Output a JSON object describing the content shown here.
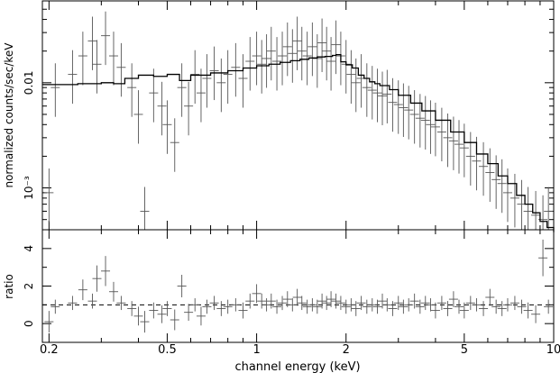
{
  "chart_data": [
    {
      "type": "scatter",
      "panel": "spectrum",
      "ylabel": "normalized counts/sec/keV",
      "xscale": "log",
      "yscale": "log",
      "xlim": [
        0.19,
        10
      ],
      "ylim": [
        0.0004,
        0.06
      ],
      "yticks": [
        {
          "value": 0.01,
          "label": "0.01"
        },
        {
          "value": 0.001,
          "label": "10⁻³"
        }
      ],
      "data": [
        [
          0.2,
          0.0009
        ],
        [
          0.21,
          0.009
        ],
        [
          0.24,
          0.012
        ],
        [
          0.26,
          0.018
        ],
        [
          0.28,
          0.025
        ],
        [
          0.29,
          0.015
        ],
        [
          0.31,
          0.028
        ],
        [
          0.33,
          0.018
        ],
        [
          0.35,
          0.014
        ],
        [
          0.38,
          0.009
        ],
        [
          0.4,
          0.005
        ],
        [
          0.42,
          0.0006
        ],
        [
          0.45,
          0.008
        ],
        [
          0.48,
          0.006
        ],
        [
          0.5,
          0.004
        ],
        [
          0.53,
          0.0027
        ],
        [
          0.56,
          0.009
        ],
        [
          0.59,
          0.006
        ],
        [
          0.62,
          0.012
        ],
        [
          0.65,
          0.008
        ],
        [
          0.68,
          0.011
        ],
        [
          0.72,
          0.013
        ],
        [
          0.76,
          0.01
        ],
        [
          0.8,
          0.012
        ],
        [
          0.85,
          0.014
        ],
        [
          0.9,
          0.011
        ],
        [
          0.95,
          0.016
        ],
        [
          1.0,
          0.018
        ],
        [
          1.04,
          0.015
        ],
        [
          1.08,
          0.017
        ],
        [
          1.12,
          0.02
        ],
        [
          1.17,
          0.016
        ],
        [
          1.22,
          0.018
        ],
        [
          1.27,
          0.022
        ],
        [
          1.32,
          0.019
        ],
        [
          1.37,
          0.025
        ],
        [
          1.42,
          0.02
        ],
        [
          1.48,
          0.018
        ],
        [
          1.54,
          0.022
        ],
        [
          1.6,
          0.017
        ],
        [
          1.66,
          0.024
        ],
        [
          1.72,
          0.02
        ],
        [
          1.78,
          0.016
        ],
        [
          1.85,
          0.023
        ],
        [
          1.92,
          0.018
        ],
        [
          2.0,
          0.015
        ],
        [
          2.08,
          0.012
        ],
        [
          2.16,
          0.01
        ],
        [
          2.25,
          0.011
        ],
        [
          2.35,
          0.009
        ],
        [
          2.45,
          0.0085
        ],
        [
          2.55,
          0.008
        ],
        [
          2.65,
          0.0075
        ],
        [
          2.75,
          0.0078
        ],
        [
          2.87,
          0.0065
        ],
        [
          3.0,
          0.0062
        ],
        [
          3.12,
          0.0058
        ],
        [
          3.25,
          0.0055
        ],
        [
          3.4,
          0.005
        ],
        [
          3.55,
          0.0046
        ],
        [
          3.7,
          0.0044
        ],
        [
          3.85,
          0.004
        ],
        [
          4.0,
          0.0038
        ],
        [
          4.2,
          0.0034
        ],
        [
          4.4,
          0.003
        ],
        [
          4.6,
          0.0028
        ],
        [
          4.8,
          0.0026
        ],
        [
          5.0,
          0.0024
        ],
        [
          5.25,
          0.002
        ],
        [
          5.5,
          0.0018
        ],
        [
          5.8,
          0.0016
        ],
        [
          6.1,
          0.0014
        ],
        [
          6.4,
          0.0012
        ],
        [
          6.7,
          0.0011
        ],
        [
          7.0,
          0.0009
        ],
        [
          7.4,
          0.0008
        ],
        [
          7.8,
          0.0007
        ],
        [
          8.2,
          0.0006
        ],
        [
          8.7,
          0.00055
        ],
        [
          9.2,
          0.0005
        ],
        [
          9.6,
          0.0006
        ]
      ],
      "model": [
        [
          0.19,
          0.0096
        ],
        [
          0.25,
          0.0098
        ],
        [
          0.3,
          0.01
        ],
        [
          0.33,
          0.0098
        ],
        [
          0.36,
          0.011
        ],
        [
          0.4,
          0.0118
        ],
        [
          0.45,
          0.0115
        ],
        [
          0.5,
          0.012
        ],
        [
          0.55,
          0.0105
        ],
        [
          0.6,
          0.0118
        ],
        [
          0.7,
          0.0124
        ],
        [
          0.8,
          0.013
        ],
        [
          0.9,
          0.0138
        ],
        [
          1.0,
          0.0145
        ],
        [
          1.1,
          0.015
        ],
        [
          1.2,
          0.0156
        ],
        [
          1.3,
          0.0162
        ],
        [
          1.4,
          0.0167
        ],
        [
          1.5,
          0.0172
        ],
        [
          1.6,
          0.0176
        ],
        [
          1.7,
          0.0178
        ],
        [
          1.8,
          0.0182
        ],
        [
          1.85,
          0.0185
        ],
        [
          1.92,
          0.0158
        ],
        [
          2.0,
          0.0148
        ],
        [
          2.1,
          0.0138
        ],
        [
          2.2,
          0.0118
        ],
        [
          2.3,
          0.011
        ],
        [
          2.4,
          0.0102
        ],
        [
          2.5,
          0.0098
        ],
        [
          2.6,
          0.0094
        ],
        [
          2.8,
          0.0086
        ],
        [
          3.0,
          0.0076
        ],
        [
          3.3,
          0.0064
        ],
        [
          3.6,
          0.0054
        ],
        [
          4.0,
          0.0044
        ],
        [
          4.5,
          0.0034
        ],
        [
          5.0,
          0.0027
        ],
        [
          5.5,
          0.0021
        ],
        [
          6.0,
          0.0017
        ],
        [
          6.5,
          0.0013
        ],
        [
          7.0,
          0.0011
        ],
        [
          7.5,
          0.00085
        ],
        [
          8.0,
          0.0007
        ],
        [
          8.5,
          0.00058
        ],
        [
          9.0,
          0.00048
        ],
        [
          9.5,
          0.00042
        ],
        [
          10.0,
          0.00038
        ]
      ]
    },
    {
      "type": "scatter",
      "panel": "ratio",
      "xlabel": "channel energy (keV)",
      "ylabel": "ratio",
      "xscale": "log",
      "xlim": [
        0.19,
        10
      ],
      "ylim": [
        -1,
        5
      ],
      "xticks": [
        {
          "value": 0.2,
          "label": "0.2"
        },
        {
          "value": 0.5,
          "label": "0.5"
        },
        {
          "value": 1,
          "label": "1"
        },
        {
          "value": 2,
          "label": "2"
        },
        {
          "value": 5,
          "label": "5"
        },
        {
          "value": 10,
          "label": "10"
        }
      ],
      "yticks": [
        {
          "value": 0,
          "label": "0"
        },
        {
          "value": 2,
          "label": "2"
        },
        {
          "value": 4,
          "label": "4"
        }
      ],
      "reference_line": 1,
      "data": [
        [
          0.2,
          0.1
        ],
        [
          0.21,
          0.9
        ],
        [
          0.24,
          1.1
        ],
        [
          0.26,
          1.8
        ],
        [
          0.28,
          1.2
        ],
        [
          0.29,
          2.4
        ],
        [
          0.31,
          2.8
        ],
        [
          0.33,
          1.7
        ],
        [
          0.35,
          1.1
        ],
        [
          0.38,
          0.8
        ],
        [
          0.4,
          0.4
        ],
        [
          0.42,
          0.1
        ],
        [
          0.45,
          0.7
        ],
        [
          0.48,
          0.5
        ],
        [
          0.5,
          0.8
        ],
        [
          0.53,
          0.2
        ],
        [
          0.56,
          2.0
        ],
        [
          0.59,
          0.6
        ],
        [
          0.62,
          1.0
        ],
        [
          0.65,
          0.4
        ],
        [
          0.68,
          0.9
        ],
        [
          0.72,
          1.1
        ],
        [
          0.76,
          0.8
        ],
        [
          0.8,
          0.9
        ],
        [
          0.85,
          1.0
        ],
        [
          0.9,
          0.7
        ],
        [
          0.95,
          1.2
        ],
        [
          1.0,
          1.6
        ],
        [
          1.04,
          1.2
        ],
        [
          1.08,
          1.0
        ],
        [
          1.12,
          1.2
        ],
        [
          1.17,
          0.9
        ],
        [
          1.22,
          1.1
        ],
        [
          1.27,
          1.3
        ],
        [
          1.32,
          1.0
        ],
        [
          1.37,
          1.4
        ],
        [
          1.42,
          1.1
        ],
        [
          1.48,
          0.9
        ],
        [
          1.54,
          1.0
        ],
        [
          1.6,
          0.9
        ],
        [
          1.66,
          1.2
        ],
        [
          1.72,
          1.1
        ],
        [
          1.78,
          1.3
        ],
        [
          1.85,
          1.2
        ],
        [
          1.92,
          1.1
        ],
        [
          2.0,
          0.9
        ],
        [
          2.08,
          1.0
        ],
        [
          2.16,
          0.8
        ],
        [
          2.25,
          1.1
        ],
        [
          2.35,
          0.9
        ],
        [
          2.45,
          1.0
        ],
        [
          2.55,
          0.9
        ],
        [
          2.65,
          1.2
        ],
        [
          2.75,
          1.0
        ],
        [
          2.87,
          0.8
        ],
        [
          3.0,
          1.1
        ],
        [
          3.12,
          0.9
        ],
        [
          3.25,
          1.0
        ],
        [
          3.4,
          1.2
        ],
        [
          3.55,
          0.9
        ],
        [
          3.7,
          1.1
        ],
        [
          3.85,
          1.0
        ],
        [
          4.0,
          0.7
        ],
        [
          4.2,
          1.1
        ],
        [
          4.4,
          0.8
        ],
        [
          4.6,
          1.3
        ],
        [
          4.8,
          0.9
        ],
        [
          5.0,
          0.7
        ],
        [
          5.25,
          1.1
        ],
        [
          5.5,
          1.0
        ],
        [
          5.8,
          0.8
        ],
        [
          6.1,
          1.4
        ],
        [
          6.4,
          0.9
        ],
        [
          6.7,
          0.8
        ],
        [
          7.0,
          1.0
        ],
        [
          7.4,
          1.1
        ],
        [
          7.8,
          0.9
        ],
        [
          8.2,
          0.7
        ],
        [
          8.7,
          0.5
        ],
        [
          9.2,
          3.5
        ],
        [
          9.6,
          0.9
        ]
      ]
    }
  ]
}
